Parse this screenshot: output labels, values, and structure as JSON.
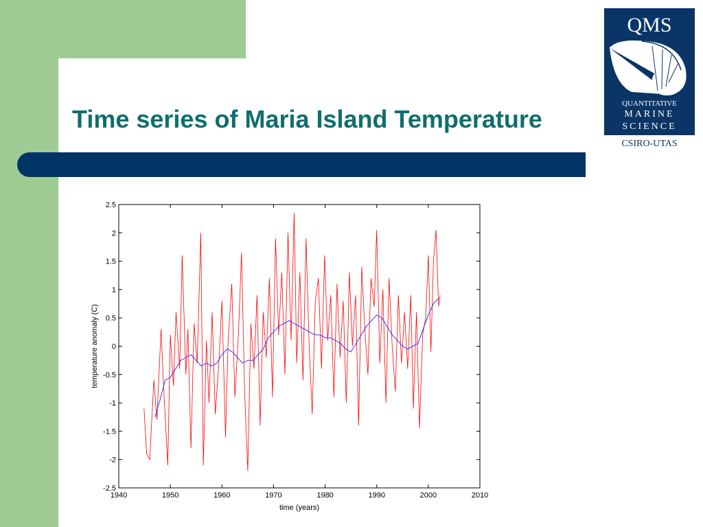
{
  "slide": {
    "title": "Time series of Maria Island Temperature"
  },
  "logo": {
    "brand": "QMS",
    "line1": "QUANTITATIVE",
    "line2": "MARINE",
    "line3": "SCIENCE",
    "footer": "CSIRO-UTAS"
  },
  "colors": {
    "title": "#0f6e6e",
    "sidebar": "#9ecb93",
    "banner": "#003366",
    "raw_series": "#ff0000",
    "smooth_series": "#3333ff"
  },
  "chart_data": {
    "type": "line",
    "xlabel": "time (years)",
    "ylabel": "temperature anomaly (C)",
    "xlim": [
      1940,
      2010
    ],
    "ylim": [
      -2.5,
      2.5
    ],
    "xticks": [
      1940,
      1950,
      1960,
      1970,
      1980,
      1990,
      2000,
      2010
    ],
    "yticks": [
      2.5,
      2,
      1.5,
      1,
      0.5,
      0,
      -0.5,
      -1,
      -1.5,
      -2,
      -2.5
    ],
    "grid": false,
    "legend": "none",
    "series": [
      {
        "color": "#ff0000",
        "x": [
          1944.9,
          1945.4,
          1946.0,
          1946.8,
          1947.4,
          1948.2,
          1948.8,
          1949.5,
          1950.0,
          1950.6,
          1951.1,
          1951.8,
          1952.3,
          1953.0,
          1953.4,
          1954.0,
          1954.6,
          1955.2,
          1955.9,
          1956.4,
          1957.0,
          1957.5,
          1958.1,
          1958.7,
          1959.4,
          1960.0,
          1960.7,
          1961.2,
          1961.9,
          1962.5,
          1963.2,
          1963.8,
          1964.4,
          1965.0,
          1965.6,
          1966.2,
          1966.8,
          1967.4,
          1968.0,
          1968.6,
          1969.2,
          1969.8,
          1970.4,
          1971.0,
          1971.6,
          1972.2,
          1972.8,
          1973.4,
          1974.0,
          1974.5,
          1975.1,
          1975.7,
          1976.3,
          1976.9,
          1977.5,
          1978.1,
          1978.7,
          1979.3,
          1979.9,
          1980.5,
          1981.1,
          1981.7,
          1982.3,
          1982.9,
          1983.5,
          1984.1,
          1984.7,
          1985.3,
          1985.9,
          1986.5,
          1987.1,
          1987.7,
          1988.3,
          1988.9,
          1989.5,
          1990.0,
          1990.6,
          1991.2,
          1991.8,
          1992.4,
          1993.0,
          1993.6,
          1994.2,
          1994.8,
          1995.4,
          1996.0,
          1996.6,
          1997.1,
          1997.7,
          1998.3,
          1998.9,
          1999.5,
          2000.0,
          2000.5,
          2001.0,
          2001.5,
          2002.0,
          2002.3
        ],
        "y": [
          -1.1,
          -1.9,
          -2.0,
          -0.6,
          -1.3,
          0.3,
          -0.9,
          -2.1,
          0.2,
          -0.7,
          0.6,
          -0.4,
          1.6,
          -0.5,
          0.3,
          -1.8,
          0.4,
          -0.3,
          2.0,
          -2.1,
          0.1,
          -1.0,
          0.6,
          -1.2,
          -0.3,
          0.8,
          -1.6,
          0.1,
          1.1,
          -0.9,
          0.2,
          1.65,
          -0.8,
          -2.2,
          0.4,
          -0.4,
          0.9,
          -1.4,
          0.6,
          -0.2,
          1.2,
          -0.9,
          1.9,
          0.2,
          1.3,
          -0.5,
          2.0,
          0.1,
          2.35,
          -0.3,
          1.3,
          -0.6,
          1.9,
          0.0,
          -1.2,
          0.8,
          1.2,
          -0.4,
          1.6,
          0.1,
          0.9,
          -0.9,
          1.1,
          -0.2,
          0.8,
          -1.0,
          1.3,
          0.0,
          0.9,
          -1.4,
          1.4,
          0.3,
          -0.5,
          1.2,
          0.7,
          2.05,
          -0.3,
          1.0,
          -1.0,
          1.2,
          0.0,
          -0.8,
          0.9,
          -0.3,
          0.6,
          -0.4,
          0.9,
          -1.1,
          0.6,
          -1.45,
          0.2,
          0.5,
          1.6,
          -0.1,
          1.5,
          2.05,
          0.7,
          0.9
        ]
      },
      {
        "color": "#3333ff",
        "x": [
          1947.0,
          1948.0,
          1949.0,
          1950.0,
          1951.0,
          1952.0,
          1953.0,
          1954.0,
          1955.0,
          1956.0,
          1957.0,
          1958.0,
          1959.0,
          1960.0,
          1961.0,
          1962.0,
          1963.0,
          1964.0,
          1965.0,
          1966.0,
          1967.0,
          1968.0,
          1969.0,
          1970.0,
          1971.0,
          1972.0,
          1973.0,
          1974.0,
          1975.0,
          1976.0,
          1977.0,
          1978.0,
          1979.0,
          1980.0,
          1981.0,
          1982.0,
          1983.0,
          1984.0,
          1985.0,
          1986.0,
          1987.0,
          1988.0,
          1989.0,
          1990.0,
          1991.0,
          1992.0,
          1993.0,
          1994.0,
          1995.0,
          1996.0,
          1997.0,
          1998.0,
          1999.0,
          2000.0,
          2001.0,
          2002.0
        ],
        "y": [
          -1.25,
          -0.95,
          -0.6,
          -0.55,
          -0.4,
          -0.25,
          -0.2,
          -0.15,
          -0.25,
          -0.35,
          -0.3,
          -0.35,
          -0.3,
          -0.15,
          -0.05,
          -0.1,
          -0.2,
          -0.3,
          -0.25,
          -0.25,
          -0.15,
          -0.05,
          0.15,
          0.25,
          0.35,
          0.4,
          0.45,
          0.4,
          0.35,
          0.3,
          0.25,
          0.2,
          0.2,
          0.15,
          0.15,
          0.1,
          0.05,
          -0.05,
          -0.1,
          0.05,
          0.2,
          0.35,
          0.45,
          0.55,
          0.5,
          0.35,
          0.2,
          0.1,
          0.0,
          -0.05,
          0.0,
          0.05,
          0.3,
          0.55,
          0.75,
          0.85
        ]
      }
    ]
  }
}
